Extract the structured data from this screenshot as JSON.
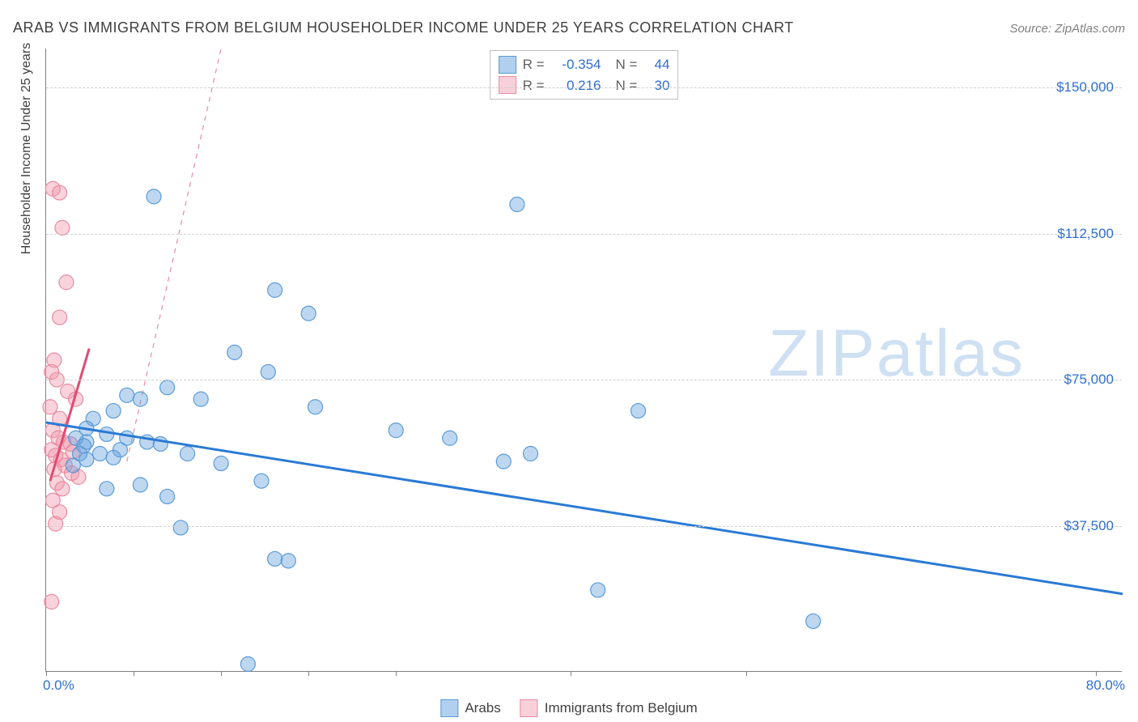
{
  "header": {
    "title": "ARAB VS IMMIGRANTS FROM BELGIUM HOUSEHOLDER INCOME UNDER 25 YEARS CORRELATION CHART",
    "source": "Source: ZipAtlas.com"
  },
  "watermark": {
    "zip": "ZIP",
    "atlas": "atlas"
  },
  "chart": {
    "type": "scatter",
    "background_color": "#ffffff",
    "grid_color": "#d0d0d0",
    "axis_color": "#808080",
    "ylabel": "Householder Income Under 25 years",
    "ylabel_fontsize": 16,
    "xlim": [
      0,
      80
    ],
    "ylim": [
      0,
      160000
    ],
    "y_ticks": [
      {
        "v": 37500,
        "label": "$37,500"
      },
      {
        "v": 75000,
        "label": "$75,000"
      },
      {
        "v": 112500,
        "label": "$112,500"
      },
      {
        "v": 150000,
        "label": "$150,000"
      }
    ],
    "x_tick_positions": [
      0,
      6.5,
      13,
      19.5,
      26,
      39,
      52,
      78
    ],
    "x_label_min": "0.0%",
    "x_label_max": "80.0%",
    "tick_label_color": "#2f6fcf",
    "tick_label_fontsize": 17,
    "marker_radius": 9,
    "marker_stroke_width": 1.2,
    "series": {
      "arabs": {
        "label": "Arabs",
        "fill": "rgba(99,160,222,0.42)",
        "stroke": "#5a9bd6",
        "r": -0.354,
        "n": 44,
        "regression": {
          "x1": 0,
          "y1": 64000,
          "x2": 80,
          "y2": 20000,
          "color": "#2a7ad4",
          "width": 3,
          "dash": "none"
        },
        "dashed_ext": {
          "x1": 6,
          "y1": 54000,
          "x2": 13,
          "y2": 160000,
          "color": "#e88ba2",
          "width": 1.2,
          "dash": "6,6"
        },
        "points": [
          {
            "x": 8.0,
            "y": 122000
          },
          {
            "x": 17.0,
            "y": 98000
          },
          {
            "x": 35.0,
            "y": 120000
          },
          {
            "x": 19.5,
            "y": 92000
          },
          {
            "x": 14.0,
            "y": 82000
          },
          {
            "x": 16.5,
            "y": 77000
          },
          {
            "x": 9.0,
            "y": 73000
          },
          {
            "x": 6.0,
            "y": 71000
          },
          {
            "x": 7.0,
            "y": 70000
          },
          {
            "x": 11.5,
            "y": 70000
          },
          {
            "x": 20.0,
            "y": 68000
          },
          {
            "x": 5.0,
            "y": 67000
          },
          {
            "x": 3.5,
            "y": 65000
          },
          {
            "x": 3.0,
            "y": 59000
          },
          {
            "x": 4.5,
            "y": 61000
          },
          {
            "x": 6.0,
            "y": 60000
          },
          {
            "x": 7.5,
            "y": 59000
          },
          {
            "x": 8.5,
            "y": 58500
          },
          {
            "x": 5.5,
            "y": 57000
          },
          {
            "x": 2.5,
            "y": 56000
          },
          {
            "x": 4.0,
            "y": 56000
          },
          {
            "x": 3.0,
            "y": 54500
          },
          {
            "x": 2.0,
            "y": 53000
          },
          {
            "x": 10.5,
            "y": 56000
          },
          {
            "x": 13.0,
            "y": 53500
          },
          {
            "x": 16.0,
            "y": 49000
          },
          {
            "x": 26.0,
            "y": 62000
          },
          {
            "x": 30.0,
            "y": 60000
          },
          {
            "x": 34.0,
            "y": 54000
          },
          {
            "x": 36.0,
            "y": 56000
          },
          {
            "x": 44.0,
            "y": 67000
          },
          {
            "x": 9.0,
            "y": 45000
          },
          {
            "x": 7.0,
            "y": 48000
          },
          {
            "x": 4.5,
            "y": 47000
          },
          {
            "x": 10.0,
            "y": 37000
          },
          {
            "x": 17.0,
            "y": 29000
          },
          {
            "x": 18.0,
            "y": 28500
          },
          {
            "x": 41.0,
            "y": 21000
          },
          {
            "x": 57.0,
            "y": 13000
          },
          {
            "x": 15.0,
            "y": 2000
          },
          {
            "x": 3.0,
            "y": 62500
          },
          {
            "x": 2.2,
            "y": 60000
          },
          {
            "x": 2.8,
            "y": 58000
          },
          {
            "x": 5.0,
            "y": 55000
          }
        ]
      },
      "belgium": {
        "label": "Immigrants from Belgium",
        "fill": "rgba(240,150,170,0.42)",
        "stroke": "#e88ba2",
        "r": 0.216,
        "n": 30,
        "regression": {
          "x1": 0.3,
          "y1": 49000,
          "x2": 3.2,
          "y2": 83000,
          "color": "#e04b72",
          "width": 3,
          "dash": "none"
        },
        "points": [
          {
            "x": 0.5,
            "y": 124000
          },
          {
            "x": 1.0,
            "y": 123000
          },
          {
            "x": 1.2,
            "y": 114000
          },
          {
            "x": 1.5,
            "y": 100000
          },
          {
            "x": 1.0,
            "y": 91000
          },
          {
            "x": 0.6,
            "y": 80000
          },
          {
            "x": 0.4,
            "y": 77000
          },
          {
            "x": 0.8,
            "y": 75000
          },
          {
            "x": 1.6,
            "y": 72000
          },
          {
            "x": 2.2,
            "y": 70000
          },
          {
            "x": 0.3,
            "y": 68000
          },
          {
            "x": 1.0,
            "y": 65000
          },
          {
            "x": 0.5,
            "y": 62000
          },
          {
            "x": 0.9,
            "y": 60000
          },
          {
            "x": 1.3,
            "y": 59000
          },
          {
            "x": 1.8,
            "y": 58500
          },
          {
            "x": 0.4,
            "y": 57000
          },
          {
            "x": 2.0,
            "y": 56500
          },
          {
            "x": 0.7,
            "y": 55500
          },
          {
            "x": 1.1,
            "y": 54500
          },
          {
            "x": 1.4,
            "y": 53000
          },
          {
            "x": 0.6,
            "y": 52000
          },
          {
            "x": 1.9,
            "y": 51000
          },
          {
            "x": 2.4,
            "y": 50000
          },
          {
            "x": 0.8,
            "y": 48500
          },
          {
            "x": 1.2,
            "y": 47000
          },
          {
            "x": 0.5,
            "y": 44000
          },
          {
            "x": 1.0,
            "y": 41000
          },
          {
            "x": 0.7,
            "y": 38000
          },
          {
            "x": 0.4,
            "y": 18000
          }
        ]
      }
    },
    "legend_top": {
      "r_label": "R =",
      "n_label": "N ="
    },
    "legend_bottom": {
      "arabs": "Arabs",
      "belgium": "Immigrants from Belgium"
    }
  }
}
